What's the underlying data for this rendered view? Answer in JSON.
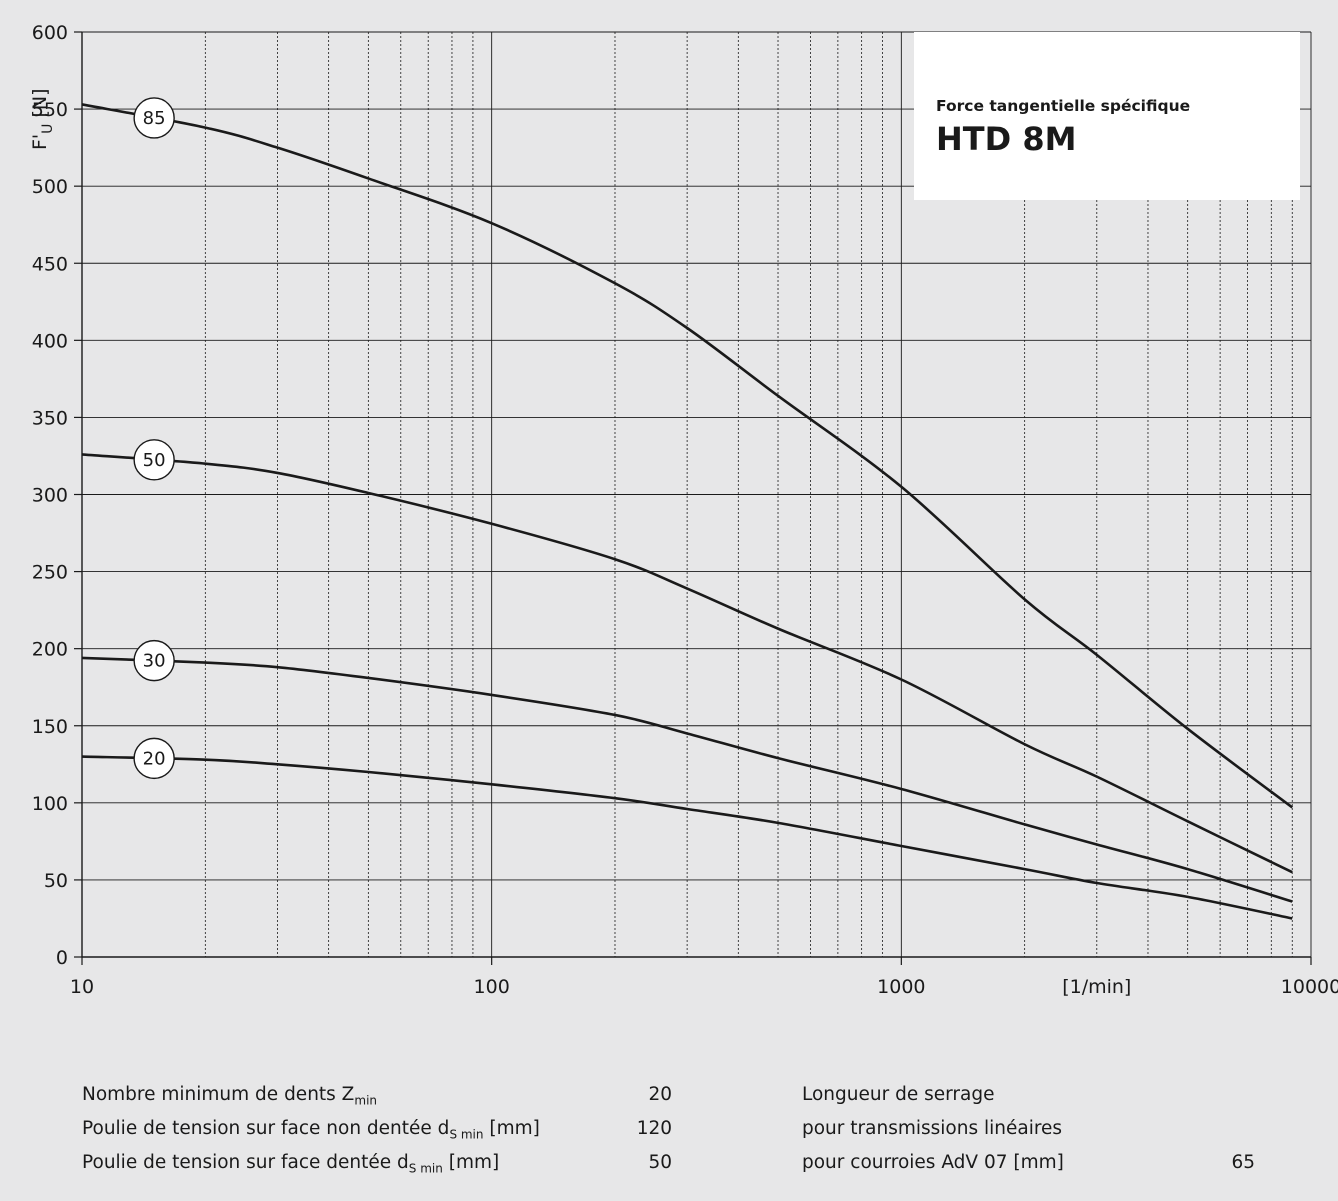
{
  "title_box": {
    "subtitle": "Force tangentielle spécifique",
    "title": "HTD 8M"
  },
  "chart_data": {
    "type": "line",
    "x_scale": "log",
    "xlim": [
      10,
      10000
    ],
    "ylim": [
      0,
      600
    ],
    "xticks": [
      "10",
      "100",
      "1000",
      "10000"
    ],
    "x_unit_label": "[1/min]",
    "yticks": [
      "0",
      "50",
      "100",
      "150",
      "200",
      "250",
      "300",
      "350",
      "400",
      "450",
      "500",
      "550",
      "600"
    ],
    "ylabel_main": "F'",
    "ylabel_sub": "U",
    "ylabel_unit": "[N]",
    "grid": true,
    "line_color": "#1a1a1a",
    "series": [
      {
        "name": "85",
        "x": [
          10,
          20,
          30,
          50,
          100,
          200,
          300,
          500,
          1000,
          2000,
          3000,
          5000,
          9000
        ],
        "y": [
          553,
          538,
          525,
          505,
          476,
          437,
          408,
          364,
          305,
          232,
          196,
          148,
          97
        ]
      },
      {
        "name": "50",
        "x": [
          10,
          20,
          30,
          50,
          100,
          200,
          300,
          500,
          1000,
          2000,
          3000,
          5000,
          9000
        ],
        "y": [
          326,
          320,
          314,
          301,
          281,
          258,
          239,
          213,
          180,
          138,
          117,
          88,
          55
        ]
      },
      {
        "name": "30",
        "x": [
          10,
          20,
          30,
          50,
          100,
          200,
          300,
          500,
          1000,
          2000,
          3000,
          5000,
          9000
        ],
        "y": [
          194,
          191,
          188,
          181,
          170,
          157,
          145,
          129,
          109,
          86,
          73,
          57,
          36
        ]
      },
      {
        "name": "20",
        "x": [
          10,
          20,
          30,
          50,
          100,
          200,
          300,
          500,
          1000,
          2000,
          3000,
          5000,
          9000
        ],
        "y": [
          130,
          128,
          125,
          120,
          112,
          103,
          96,
          87,
          72,
          57,
          48,
          39,
          25
        ]
      }
    ]
  },
  "specs": {
    "left": [
      {
        "label": "Nombre minimum de dents Z",
        "sub": "min",
        "suffix": "",
        "value": "20"
      },
      {
        "label": "Poulie de tension sur face non dentée d",
        "sub": "S min",
        "suffix": " [mm]",
        "value": "120"
      },
      {
        "label": "Poulie de tension sur face dentée d",
        "sub": "S min",
        "suffix": " [mm]",
        "value": "50"
      }
    ],
    "right": [
      {
        "label": "Longueur de serrage",
        "value": ""
      },
      {
        "label": "pour transmissions linéaires",
        "value": ""
      },
      {
        "label": "pour courroies AdV 07 [mm]",
        "value": "65"
      }
    ]
  }
}
